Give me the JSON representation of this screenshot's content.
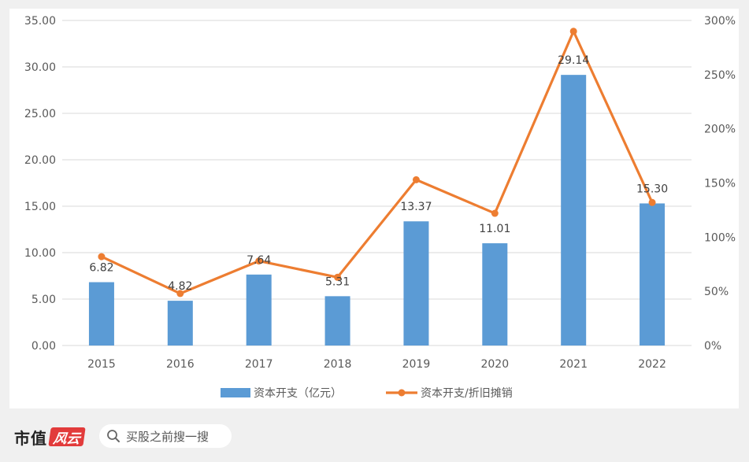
{
  "chart_data": {
    "type": "bar+line",
    "categories": [
      "2015",
      "2016",
      "2017",
      "2018",
      "2019",
      "2020",
      "2021",
      "2022"
    ],
    "series": [
      {
        "name": "资本开支（亿元）",
        "kind": "bar",
        "axis": "left",
        "color": "#5b9bd5",
        "values": [
          6.82,
          4.82,
          7.64,
          5.31,
          13.37,
          11.01,
          29.14,
          15.3
        ],
        "labels": [
          "6.82",
          "4.82",
          "7.64",
          "5.31",
          "13.37",
          "11.01",
          "29.14",
          "15.30"
        ]
      },
      {
        "name": "资本开支/折旧摊销",
        "kind": "line",
        "axis": "right",
        "color": "#ed7d31",
        "values": [
          82,
          48,
          78,
          63,
          153,
          122,
          290,
          132
        ]
      }
    ],
    "y_left": {
      "ylim": [
        0,
        35
      ],
      "ticks": [
        "0.00",
        "5.00",
        "10.00",
        "15.00",
        "20.00",
        "25.00",
        "30.00",
        "35.00"
      ]
    },
    "y_right": {
      "ylim": [
        0,
        300
      ],
      "ticks": [
        "0%",
        "50%",
        "100%",
        "150%",
        "200%",
        "250%",
        "300%"
      ]
    },
    "grid": true,
    "legend": "bottom"
  },
  "footer": {
    "brand": "市值",
    "brand_logo": "风云",
    "search_placeholder": "买股之前搜一搜"
  }
}
